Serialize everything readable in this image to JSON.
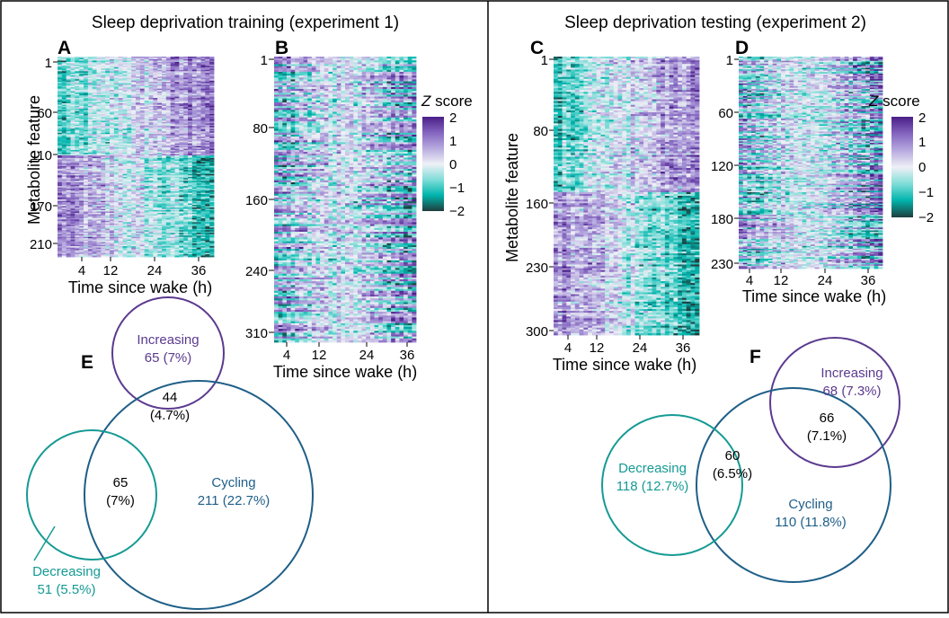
{
  "colors": {
    "purple": "#5b3a8f",
    "teal": "#159a94",
    "blue": "#1f5f88",
    "scale": [
      "#1f3d3d",
      "#00b5ad",
      "#7ddcd7",
      "#eff0f6",
      "#b5a8de",
      "#8566c0",
      "#4a1e88"
    ]
  },
  "titles": {
    "left": "Sleep deprivation training (experiment 1)",
    "right": "Sleep deprivation testing (experiment 2)"
  },
  "panel_labels": {
    "A": "A",
    "B": "B",
    "C": "C",
    "D": "D",
    "E": "E",
    "F": "F"
  },
  "axis_labels": {
    "y": "Metabolite feature",
    "x": "Time since wake (h)"
  },
  "legend": {
    "title_italic": "Z",
    "title_rest": " score",
    "ticks": [
      "2",
      "1",
      "0",
      "−1",
      "−2"
    ]
  },
  "chart_data": [
    {
      "type": "heatmap",
      "id": "A",
      "n_features": 220,
      "y_ticks": [
        "1",
        "60",
        "110",
        "170",
        "210"
      ],
      "y_tick_values": [
        1,
        60,
        110,
        170,
        210
      ],
      "x_ticks": [
        "4",
        "12",
        "24",
        "36"
      ],
      "x_tick_values": [
        4,
        12,
        24,
        36
      ],
      "xlim": [
        1,
        40
      ],
      "zlim": [
        -2,
        2
      ],
      "clusters": [
        [
          1,
          108
        ],
        [
          109,
          220
        ]
      ]
    },
    {
      "type": "heatmap",
      "id": "B",
      "n_features": 315,
      "y_ticks": [
        "1",
        "80",
        "160",
        "240",
        "310"
      ],
      "y_tick_values": [
        1,
        80,
        160,
        240,
        310
      ],
      "x_ticks": [
        "4",
        "12",
        "24",
        "36"
      ],
      "x_tick_values": [
        4,
        12,
        24,
        36
      ],
      "xlim": [
        1,
        40
      ],
      "zlim": [
        -2,
        2
      ]
    },
    {
      "type": "heatmap",
      "id": "C",
      "n_features": 310,
      "y_ticks": [
        "1",
        "80",
        "160",
        "230",
        "300"
      ],
      "y_tick_values": [
        1,
        80,
        160,
        230,
        300
      ],
      "x_ticks": [
        "4",
        "12",
        "24",
        "36"
      ],
      "x_tick_values": [
        4,
        12,
        24,
        36
      ],
      "xlim": [
        1,
        40
      ],
      "zlim": [
        -2,
        2
      ],
      "clusters": [
        [
          1,
          150
        ],
        [
          151,
          310
        ]
      ]
    },
    {
      "type": "heatmap",
      "id": "D",
      "n_features": 235,
      "y_ticks": [
        "1",
        "60",
        "120",
        "180",
        "230"
      ],
      "y_tick_values": [
        1,
        60,
        120,
        180,
        230
      ],
      "x_ticks": [
        "4",
        "12",
        "24",
        "36"
      ],
      "x_tick_values": [
        4,
        12,
        24,
        36
      ],
      "xlim": [
        1,
        40
      ],
      "zlim": [
        -2,
        2
      ]
    },
    {
      "type": "venn",
      "id": "E",
      "sets": [
        {
          "name": "Increasing",
          "only": "65 (7%)"
        },
        {
          "name": "Cycling",
          "only": "211 (22.7%)"
        },
        {
          "name": "Decreasing",
          "only": "51 (5.5%)"
        }
      ],
      "overlaps": [
        {
          "sets": [
            "Increasing",
            "Cycling"
          ],
          "line1": "44",
          "line2": "(4.7%)"
        },
        {
          "sets": [
            "Decreasing",
            "Cycling"
          ],
          "line1": "65",
          "line2": "(7%)"
        }
      ]
    },
    {
      "type": "venn",
      "id": "F",
      "sets": [
        {
          "name": "Increasing",
          "only": "68 (7.3%)"
        },
        {
          "name": "Cycling",
          "only": "110 (11.8%)"
        },
        {
          "name": "Decreasing",
          "only": "118 (12.7%)"
        }
      ],
      "overlaps": [
        {
          "sets": [
            "Increasing",
            "Cycling"
          ],
          "line1": "66",
          "line2": "(7.1%)"
        },
        {
          "sets": [
            "Decreasing",
            "Cycling"
          ],
          "line1": "60",
          "line2": "(6.5%)"
        }
      ]
    }
  ]
}
